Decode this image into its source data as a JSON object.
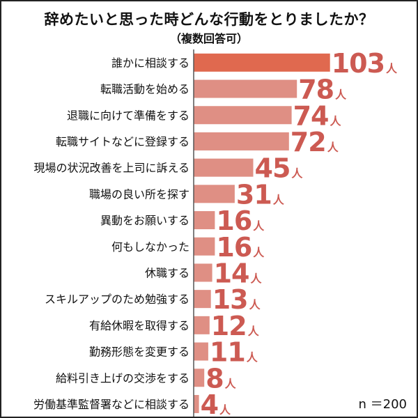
{
  "chart_data": {
    "type": "bar",
    "orientation": "horizontal",
    "title": "辞めたいと思った時どんな行動をとりましたか？",
    "subtitle": "（複数回答可）",
    "unit": "人",
    "note": "n ＝200",
    "categories": [
      "誰かに相談する",
      "転職活動を始める",
      "退職に向けて準備をする",
      "転職サイトなどに登録する",
      "現場の状況改善を上司に訴える",
      "職場の良い所を探す",
      "異動をお願いする",
      "何もしなかった",
      "休職する",
      "スキルアップのため勉強する",
      "有給休暇を取得する",
      "勤務形態を変更する",
      "給料引き上げの交渉をする",
      "労働基準監督署などに相談する"
    ],
    "values": [
      103,
      78,
      74,
      72,
      45,
      31,
      16,
      16,
      14,
      13,
      12,
      11,
      8,
      4
    ],
    "colors": {
      "top_bar": "#e0694f",
      "bar": "#df8f84",
      "value_text": "#cc5a52",
      "axis": "#555555",
      "text": "#111111"
    },
    "axis_line": true,
    "grid": false,
    "legend": "none"
  }
}
